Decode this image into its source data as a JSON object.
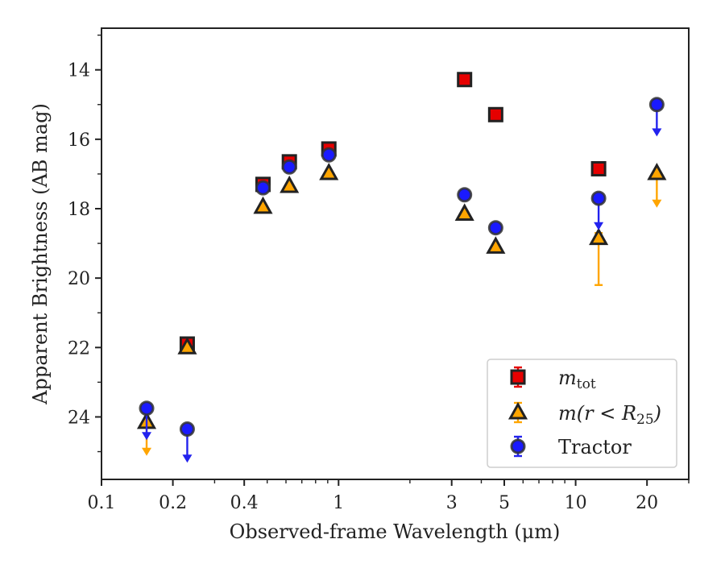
{
  "chart_data": {
    "type": "scatter",
    "xlabel": "Observed-frame Wavelength (μm)",
    "ylabel": "Apparent Brightness (AB mag)",
    "xscale": "log",
    "xlim": [
      0.1,
      30
    ],
    "ylim": [
      25.8,
      12.8
    ],
    "y_inverted": true,
    "grid": false,
    "legend_position": "lower-right",
    "x_ticks": [
      {
        "value": 0.1,
        "label": "0.1"
      },
      {
        "value": 0.2,
        "label": "0.2"
      },
      {
        "value": 0.4,
        "label": "0.4"
      },
      {
        "value": 1,
        "label": "1"
      },
      {
        "value": 3,
        "label": "3"
      },
      {
        "value": 5,
        "label": "5"
      },
      {
        "value": 10,
        "label": "10"
      },
      {
        "value": 20,
        "label": "20"
      }
    ],
    "y_ticks": [
      {
        "value": 14,
        "label": "14"
      },
      {
        "value": 16,
        "label": "16"
      },
      {
        "value": 18,
        "label": "18"
      },
      {
        "value": 20,
        "label": "20"
      },
      {
        "value": 22,
        "label": "22"
      },
      {
        "value": 24,
        "label": "24"
      }
    ],
    "series": [
      {
        "name": "m_tot",
        "legend_main": "m",
        "legend_sub": "tot",
        "marker": "square",
        "color": "#e60000",
        "errcolor": "#e60000",
        "points": [
          {
            "x": 0.23,
            "y": 21.9,
            "err": 0.08
          },
          {
            "x": 0.48,
            "y": 17.3,
            "err": 0.06
          },
          {
            "x": 0.62,
            "y": 16.65,
            "err": 0.06
          },
          {
            "x": 0.91,
            "y": 16.28,
            "err": 0.06
          },
          {
            "x": 3.4,
            "y": 14.28,
            "err": 0.05
          },
          {
            "x": 4.6,
            "y": 15.29,
            "err": 0.05
          },
          {
            "x": 12.5,
            "y": 16.85,
            "err": 0.05
          }
        ]
      },
      {
        "name": "m(r < R25)",
        "legend_main": "m(r < R",
        "legend_sub": "25",
        "legend_tail": ")",
        "marker": "triangle",
        "color": "#ffa500",
        "errcolor": "#ffa500",
        "points": [
          {
            "x": 0.155,
            "y": 24.15,
            "upper_limit": true,
            "arrow_to": 25.05
          },
          {
            "x": 0.23,
            "y": 22.0,
            "err": 0.05
          },
          {
            "x": 0.48,
            "y": 17.95
          },
          {
            "x": 0.62,
            "y": 17.35
          },
          {
            "x": 0.91,
            "y": 16.98
          },
          {
            "x": 3.4,
            "y": 18.15
          },
          {
            "x": 4.6,
            "y": 19.1
          },
          {
            "x": 12.5,
            "y": 18.85,
            "err_low": 0.15,
            "err_high": 1.35
          },
          {
            "x": 22,
            "y": 16.98,
            "upper_limit": true,
            "arrow_to": 17.9
          }
        ]
      },
      {
        "name": "Tractor",
        "marker": "circle",
        "color": "#1a1aff",
        "errcolor": "#2222ee",
        "points": [
          {
            "x": 0.155,
            "y": 23.75,
            "upper_limit": true,
            "arrow_to": 24.6
          },
          {
            "x": 0.23,
            "y": 24.35,
            "upper_limit": true,
            "arrow_to": 25.25
          },
          {
            "x": 0.48,
            "y": 17.4,
            "err": 0.05
          },
          {
            "x": 0.62,
            "y": 16.8,
            "err": 0.05
          },
          {
            "x": 0.91,
            "y": 16.45,
            "err": 0.05
          },
          {
            "x": 3.4,
            "y": 17.6
          },
          {
            "x": 4.6,
            "y": 18.55
          },
          {
            "x": 12.5,
            "y": 17.7,
            "upper_limit": true,
            "arrow_to": 18.55
          },
          {
            "x": 22,
            "y": 15.0,
            "upper_limit": true,
            "arrow_to": 15.85
          }
        ]
      }
    ],
    "legend": [
      {
        "label": "m",
        "sub": "tot",
        "tail": "",
        "italic": true
      },
      {
        "label": "m(r < R",
        "sub": "25",
        "tail": ")",
        "italic": true
      },
      {
        "label": "Tractor",
        "sub": "",
        "tail": "",
        "italic": false
      }
    ]
  }
}
